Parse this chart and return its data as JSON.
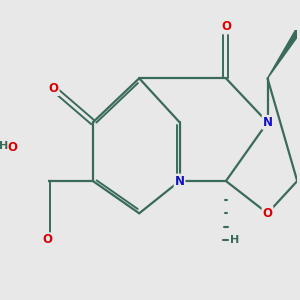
{
  "bg_color": "#e8e8e8",
  "bond_color": "#3a6b5a",
  "atom_colors": {
    "O": "#dd0000",
    "N": "#1111cc",
    "H": "#3a6b5a",
    "C": "#3a6b5a"
  },
  "font_size": 8.5,
  "figsize": [
    3.0,
    3.0
  ],
  "dpi": 100
}
